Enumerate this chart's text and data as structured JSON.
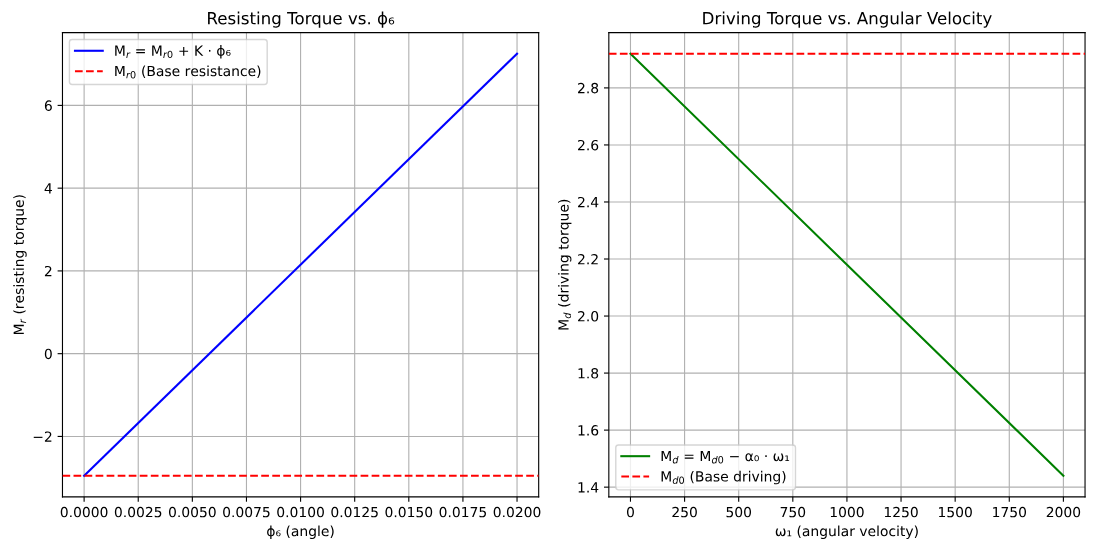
{
  "chart_data": [
    {
      "type": "line",
      "title": "Resisting Torque vs. ϕ₆",
      "xlabel": "ϕ₆ (angle)",
      "ylabel": "M$_{r}$ (resisting torque)",
      "series": [
        {
          "name": "M$_{r}$ = M$_{r0}$ + K · ϕ₆",
          "color": "#0000ff",
          "x": [
            0,
            0.02
          ],
          "values": [
            -2.95,
            7.25
          ]
        }
      ],
      "ref_lines": [
        {
          "axis": "y",
          "value": -2.95,
          "label": "M$_{r0}$ (Base resistance)",
          "color": "#ff0000",
          "line_style": "dashed"
        }
      ],
      "xlim": [
        -0.001,
        0.021
      ],
      "ylim": [
        -3.46,
        7.76
      ],
      "xticks": [
        {
          "value": 0,
          "label": "0.0000"
        },
        {
          "value": 0.0025,
          "label": "0.0025"
        },
        {
          "value": 0.005,
          "label": "0.0050"
        },
        {
          "value": 0.0075,
          "label": "0.0075"
        },
        {
          "value": 0.01,
          "label": "0.0100"
        },
        {
          "value": 0.0125,
          "label": "0.0125"
        },
        {
          "value": 0.015,
          "label": "0.0150"
        },
        {
          "value": 0.0175,
          "label": "0.0175"
        },
        {
          "value": 0.02,
          "label": "0.0200"
        }
      ],
      "yticks": [
        {
          "value": -2,
          "label": "−2"
        },
        0,
        2,
        4,
        6
      ],
      "grid": true,
      "legend": "top left"
    },
    {
      "type": "line",
      "title": "Driving Torque vs. Angular Velocity",
      "xlabel": "ω₁ (angular velocity)",
      "ylabel": "M$_{d}$ (driving torque)",
      "series": [
        {
          "name": "M$_{d}$ = M$_{d0}$ − α₀ · ω₁",
          "color": "#008000",
          "x": [
            0,
            2000
          ],
          "values": [
            2.92,
            1.44
          ]
        }
      ],
      "ref_lines": [
        {
          "axis": "y",
          "value": 2.92,
          "label": "M$_{d0}$ (Base driving)",
          "color": "#ff0000",
          "line_style": "dashed"
        }
      ],
      "xlim": [
        -100,
        2100
      ],
      "ylim": [
        1.366,
        2.994
      ],
      "xticks": [
        0,
        250,
        500,
        750,
        1000,
        1250,
        1500,
        1750,
        2000
      ],
      "yticks": [
        {
          "value": 1.4,
          "label": "1.4"
        },
        {
          "value": 1.6,
          "label": "1.6"
        },
        {
          "value": 1.8,
          "label": "1.8"
        },
        {
          "value": 2.0,
          "label": "2.0"
        },
        {
          "value": 2.2,
          "label": "2.2"
        },
        {
          "value": 2.4,
          "label": "2.4"
        },
        {
          "value": 2.6,
          "label": "2.6"
        },
        {
          "value": 2.8,
          "label": "2.8"
        }
      ],
      "grid": true,
      "legend": "bottom left"
    }
  ]
}
